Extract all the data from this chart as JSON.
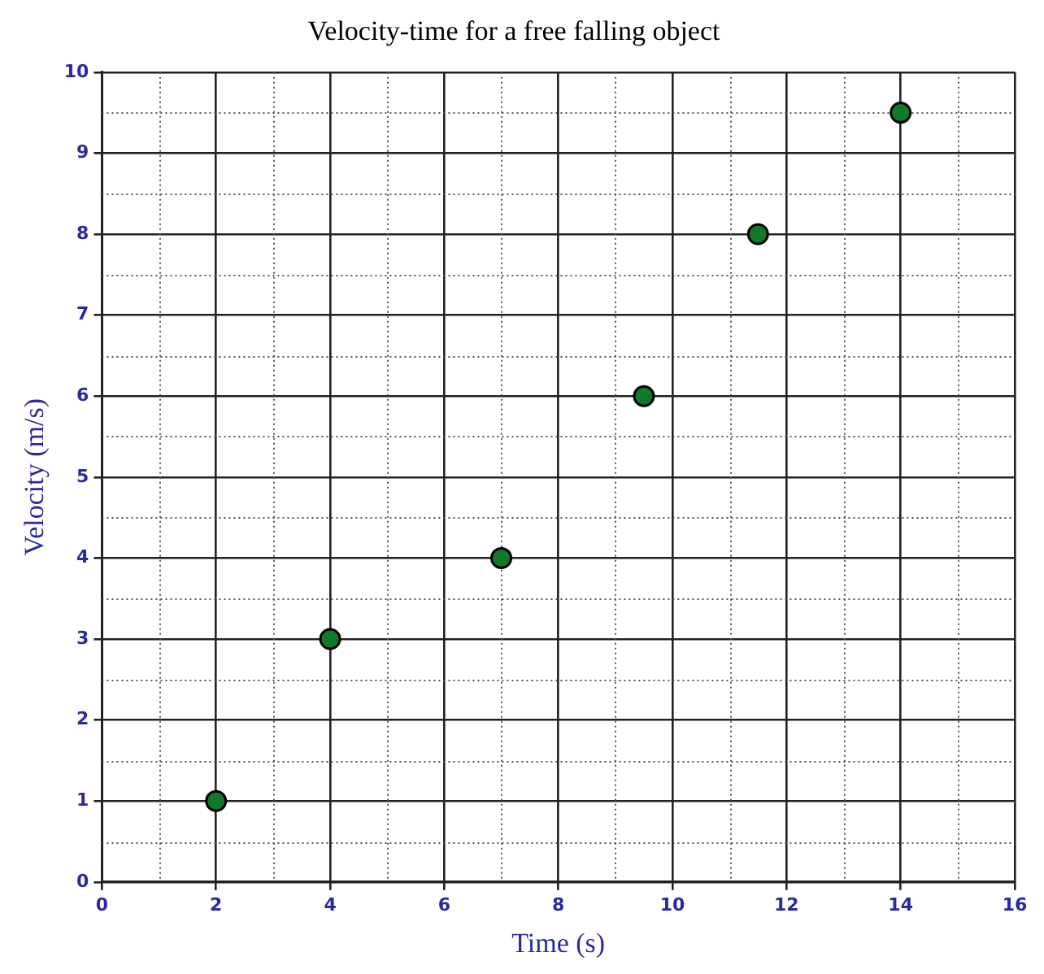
{
  "chart_data": {
    "type": "scatter",
    "title": "Velocity-time for a free falling object",
    "xlabel": "Time (s)",
    "ylabel": "Velocity (m/s)",
    "x": [
      2,
      4,
      7,
      9.5,
      11.5,
      14
    ],
    "series": [
      {
        "color": "#117a2a",
        "values": [
          1,
          3,
          4,
          6,
          8,
          9.5
        ]
      }
    ],
    "xlim": [
      0,
      16
    ],
    "xticks": [
      0,
      2,
      4,
      6,
      8,
      10,
      12,
      14,
      16
    ],
    "ylim": [
      0,
      10
    ],
    "yticks": [
      0,
      1,
      2,
      3,
      4,
      5,
      6,
      7,
      8,
      9,
      10
    ],
    "grid": true,
    "marker": "circle",
    "legend": false
  }
}
